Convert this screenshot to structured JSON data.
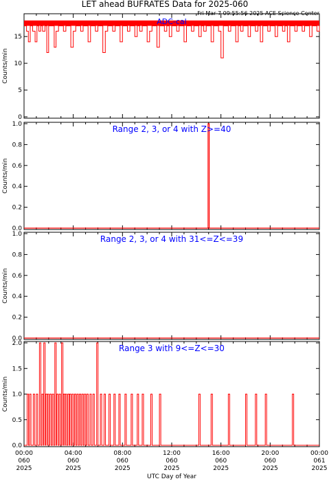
{
  "title": "LET ahead BUFRATES Data for 2025-060",
  "timestamp": "Fri Mar  7 09:55:56 2025 ACE Science Center",
  "xlabel": "UTC Day of Year",
  "colors": {
    "data": "#ff0000",
    "panel_label": "#0000ff",
    "axes": "#000000"
  },
  "x_ticks": [
    {
      "time": "00:00",
      "doy": "060",
      "year": "2025"
    },
    {
      "time": "04:00",
      "doy": "060",
      "year": "2025"
    },
    {
      "time": "08:00",
      "doy": "060",
      "year": "2025"
    },
    {
      "time": "12:00",
      "doy": "060",
      "year": "2025"
    },
    {
      "time": "16:00",
      "doy": "060",
      "year": "2025"
    },
    {
      "time": "20:00",
      "doy": "060",
      "year": "2025"
    },
    {
      "time": "00:00",
      "doy": "061",
      "year": "2025"
    }
  ],
  "chart_data": [
    {
      "type": "line",
      "label": "ADC-cal",
      "ylabel": "Counts/min",
      "ylim": [
        0,
        19
      ],
      "yticks": [
        0,
        5,
        10,
        15
      ],
      "xlim_hours": [
        0,
        24
      ],
      "series": [
        {
          "x": [
            0.0,
            0.2,
            0.35,
            0.5,
            0.7,
            0.9,
            1.05,
            1.2,
            1.35,
            1.5,
            1.7,
            1.85,
            2.0,
            2.2,
            2.45,
            2.6,
            2.8,
            3.0,
            3.2,
            3.4,
            3.6,
            3.8,
            4.0,
            4.2,
            4.4,
            4.6,
            4.8,
            5.0,
            5.2,
            5.4,
            5.6,
            5.8,
            6.0,
            6.2,
            6.4,
            6.6,
            6.8,
            7.0,
            7.2,
            7.4,
            7.6,
            7.8,
            8.0,
            8.2,
            8.4,
            8.6,
            8.8,
            9.0,
            9.2,
            9.4,
            9.6,
            9.8,
            10.0,
            10.2,
            10.4,
            10.6,
            10.8,
            11.0,
            11.2,
            11.4,
            11.6,
            11.8,
            12.0,
            12.2,
            12.4,
            12.6,
            12.8,
            13.0,
            13.2,
            13.4,
            13.6,
            13.8,
            14.0,
            14.2,
            14.4,
            14.6,
            14.8,
            15.0,
            15.2,
            15.4,
            15.6,
            15.8,
            16.0,
            16.2,
            16.4,
            16.6,
            16.8,
            17.0,
            17.2,
            17.4,
            17.6,
            17.8,
            18.0,
            18.2,
            18.4,
            18.6,
            18.8,
            19.0,
            19.2,
            19.4,
            19.6,
            19.8,
            20.0,
            20.2,
            20.4,
            20.6,
            20.8,
            21.0,
            21.2,
            21.4,
            21.6,
            21.8,
            22.0,
            22.2,
            22.4,
            22.6,
            22.8,
            23.0,
            23.2,
            23.4,
            23.6,
            23.8,
            24.0
          ],
          "y": [
            17,
            16,
            14,
            17,
            16,
            14,
            17,
            16,
            17,
            16,
            17,
            12,
            17,
            17,
            13,
            16,
            17,
            17,
            16,
            17,
            17,
            13,
            16,
            17,
            17,
            16,
            17,
            17,
            14,
            17,
            17,
            16,
            17,
            17,
            12,
            16,
            17,
            17,
            16,
            17,
            17,
            14,
            17,
            17,
            16,
            17,
            17,
            15,
            17,
            16,
            17,
            17,
            14,
            16,
            17,
            17,
            13,
            17,
            17,
            16,
            17,
            15,
            17,
            17,
            16,
            17,
            17,
            14,
            17,
            17,
            16,
            17,
            17,
            15,
            17,
            16,
            17,
            17,
            14,
            17,
            17,
            16,
            11,
            17,
            17,
            16,
            17,
            17,
            14,
            17,
            16,
            17,
            17,
            15,
            17,
            17,
            16,
            17,
            14,
            17,
            17,
            16,
            17,
            17,
            15,
            17,
            17,
            16,
            17,
            14,
            17,
            17,
            16,
            17,
            17,
            16,
            17,
            17,
            15,
            17,
            17,
            16,
            17
          ]
        }
      ]
    },
    {
      "type": "line",
      "label": "Range 2, 3, or 4 with Z>=40",
      "ylabel": "Counts/min",
      "ylim": [
        0,
        1
      ],
      "yticks": [
        "0.0",
        "0.2",
        "0.4",
        "0.6",
        "0.8",
        "1.0"
      ],
      "xlim_hours": [
        0,
        24
      ],
      "series": [
        {
          "x": [
            0,
            14.95,
            14.95,
            15.05,
            15.05,
            24
          ],
          "y": [
            0,
            0,
            1.0,
            1.0,
            0,
            0
          ]
        }
      ]
    },
    {
      "type": "line",
      "label": "Range 2, 3, or 4 with 31<=Z<=39",
      "ylabel": "Counts/min",
      "ylim": [
        0,
        1
      ],
      "yticks": [
        "0.0",
        "0.2",
        "0.4",
        "0.6",
        "0.8",
        "1.0"
      ],
      "xlim_hours": [
        0,
        24
      ],
      "series": [
        {
          "x": [
            0,
            24
          ],
          "y": [
            0,
            0
          ]
        }
      ]
    },
    {
      "type": "line",
      "label": "Range 3 with 9<=Z<=30",
      "ylabel": "Counts/min",
      "ylim": [
        0,
        2
      ],
      "yticks": [
        "0.0",
        "0.5",
        "1.0",
        "1.5",
        "2.0"
      ],
      "xlim_hours": [
        0,
        24
      ],
      "events": [
        {
          "t": 0.25,
          "v": 1
        },
        {
          "t": 0.45,
          "v": 1
        },
        {
          "t": 0.75,
          "v": 1
        },
        {
          "t": 1.0,
          "v": 1
        },
        {
          "t": 1.25,
          "v": 2
        },
        {
          "t": 1.45,
          "v": 1
        },
        {
          "t": 1.6,
          "v": 2
        },
        {
          "t": 1.75,
          "v": 1
        },
        {
          "t": 1.9,
          "v": 1
        },
        {
          "t": 2.1,
          "v": 1
        },
        {
          "t": 2.3,
          "v": 1
        },
        {
          "t": 2.5,
          "v": 2
        },
        {
          "t": 2.65,
          "v": 1
        },
        {
          "t": 2.85,
          "v": 1
        },
        {
          "t": 3.05,
          "v": 2
        },
        {
          "t": 3.2,
          "v": 1
        },
        {
          "t": 3.35,
          "v": 1
        },
        {
          "t": 3.55,
          "v": 1
        },
        {
          "t": 3.7,
          "v": 1
        },
        {
          "t": 3.9,
          "v": 1
        },
        {
          "t": 4.1,
          "v": 1
        },
        {
          "t": 4.3,
          "v": 1
        },
        {
          "t": 4.5,
          "v": 1
        },
        {
          "t": 4.7,
          "v": 1
        },
        {
          "t": 4.9,
          "v": 1
        },
        {
          "t": 5.1,
          "v": 1
        },
        {
          "t": 5.35,
          "v": 1
        },
        {
          "t": 5.6,
          "v": 1
        },
        {
          "t": 5.9,
          "v": 2
        },
        {
          "t": 6.2,
          "v": 1
        },
        {
          "t": 6.5,
          "v": 1
        },
        {
          "t": 6.9,
          "v": 1
        },
        {
          "t": 7.3,
          "v": 1
        },
        {
          "t": 7.7,
          "v": 1
        },
        {
          "t": 8.2,
          "v": 1
        },
        {
          "t": 8.7,
          "v": 1
        },
        {
          "t": 9.2,
          "v": 1
        },
        {
          "t": 9.6,
          "v": 1
        },
        {
          "t": 10.3,
          "v": 1
        },
        {
          "t": 11.0,
          "v": 1
        },
        {
          "t": 14.2,
          "v": 1
        },
        {
          "t": 15.2,
          "v": 1
        },
        {
          "t": 16.6,
          "v": 1
        },
        {
          "t": 18.0,
          "v": 1
        },
        {
          "t": 18.8,
          "v": 1
        },
        {
          "t": 19.6,
          "v": 1
        },
        {
          "t": 21.8,
          "v": 1
        }
      ]
    }
  ]
}
